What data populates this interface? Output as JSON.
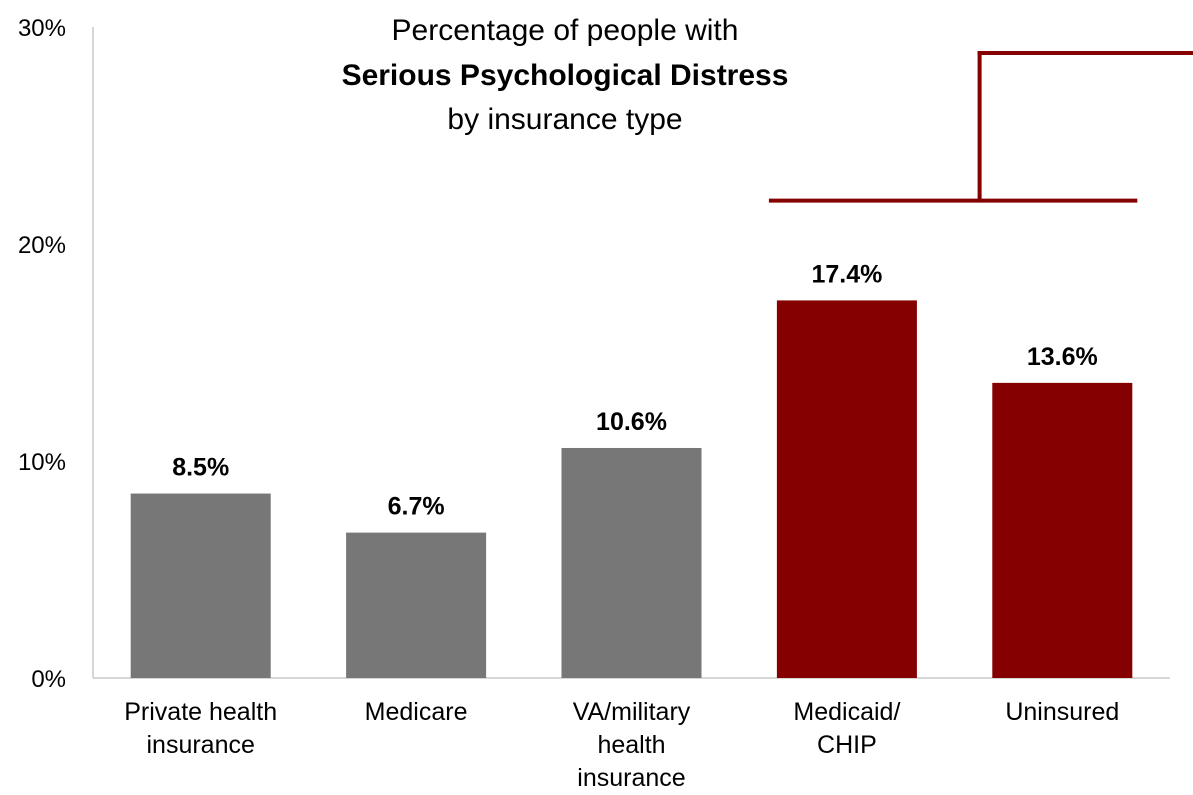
{
  "chart_data": {
    "type": "bar",
    "title": {
      "line1": "Percentage of people with",
      "line2": "Serious Psychological Distress",
      "line3": "by insurance type"
    },
    "categories": [
      [
        "Private health",
        "insurance"
      ],
      [
        "Medicare"
      ],
      [
        "VA/military",
        "health",
        "insurance"
      ],
      [
        "Medicaid/",
        "CHIP"
      ],
      [
        "Uninsured"
      ]
    ],
    "values": [
      8.5,
      6.7,
      10.6,
      17.4,
      13.6
    ],
    "value_labels": [
      "8.5%",
      "6.7%",
      "10.6%",
      "17.4%",
      "13.6%"
    ],
    "ylim": [
      0,
      30
    ],
    "y_ticks": [
      0,
      10,
      20,
      30
    ],
    "y_tick_labels": [
      "0%",
      "10%",
      "20%",
      "30%"
    ],
    "xlabel": "",
    "ylabel": "",
    "grid": false,
    "legend": "none",
    "highlighted_categories": [
      3,
      4
    ],
    "colors": {
      "default_bar": "#777777",
      "highlight_bar": "#850000",
      "bracket": "#850000",
      "axis": "#c8c8c8",
      "text": "#000000"
    }
  }
}
